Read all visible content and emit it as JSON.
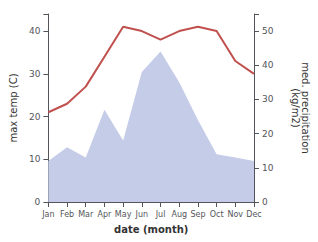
{
  "chart_data": {
    "type": "line",
    "categories": [
      "Jan",
      "Feb",
      "Mar",
      "Apr",
      "May",
      "Jun",
      "Jul",
      "Aug",
      "Sep",
      "Oct",
      "Nov",
      "Dec"
    ],
    "xlabel": "date (month)",
    "ylabel": "max temp (C)",
    "y2label": "med. precipitation\n(kg/m2)",
    "series": [
      {
        "type": "area",
        "axis": "y2",
        "color": "#c5cce8",
        "values": [
          12,
          16,
          13,
          27,
          18,
          38,
          44,
          35,
          24,
          14,
          13,
          12
        ]
      },
      {
        "type": "line",
        "color": "#c0504d",
        "values": [
          21,
          23,
          27,
          34,
          41,
          40,
          38,
          40,
          41,
          40,
          33,
          30
        ]
      }
    ],
    "ylim": [
      0,
      44
    ],
    "yticks": [
      0,
      10,
      20,
      30,
      40
    ],
    "y2lim": [
      0,
      55
    ],
    "y2ticks": [
      0,
      10,
      20,
      30,
      40,
      50
    ],
    "grid": false
  }
}
